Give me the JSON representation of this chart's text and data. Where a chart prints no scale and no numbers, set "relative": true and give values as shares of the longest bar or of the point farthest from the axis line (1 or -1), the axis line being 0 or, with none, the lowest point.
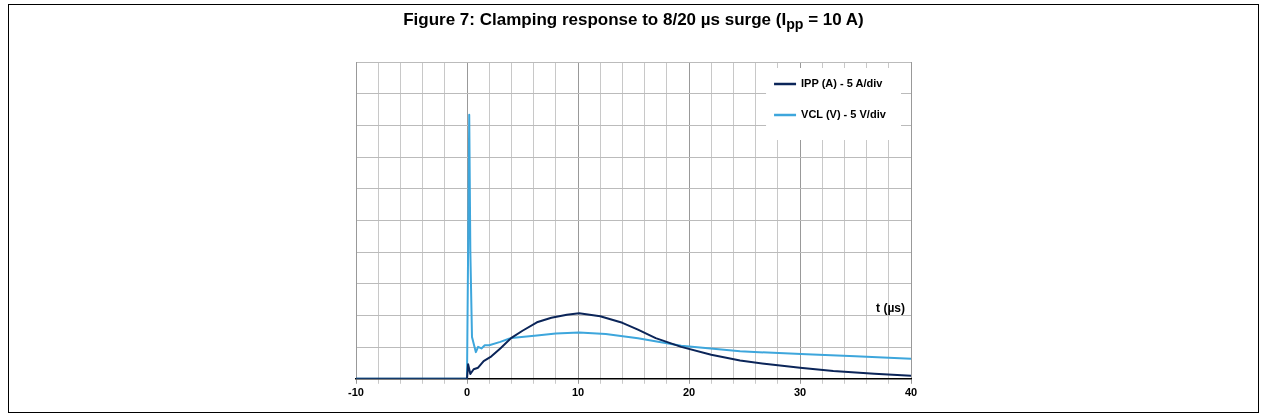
{
  "chart_data": {
    "type": "line",
    "title": "Figure 7: Clamping response to 8/20 µs surge (I$_{pp}$ = 10 A)",
    "xlabel": "t (µs)",
    "relative": true,
    "xlim": [
      -10,
      40
    ],
    "xticks": [
      -10,
      {
        "value": -8,
        "label": null
      },
      {
        "value": -6,
        "label": null
      },
      {
        "value": -4,
        "label": null
      },
      {
        "value": -2,
        "label": null
      },
      0,
      {
        "value": 2,
        "label": null
      },
      {
        "value": 4,
        "label": null
      },
      {
        "value": 6,
        "label": null
      },
      {
        "value": 8,
        "label": null
      },
      10,
      {
        "value": 12,
        "label": null
      },
      {
        "value": 14,
        "label": null
      },
      {
        "value": 16,
        "label": null
      },
      {
        "value": 18,
        "label": null
      },
      20,
      {
        "value": 22,
        "label": null
      },
      {
        "value": 24,
        "label": null
      },
      {
        "value": 26,
        "label": null
      },
      {
        "value": 28,
        "label": null
      },
      30,
      {
        "value": 32,
        "label": null
      },
      {
        "value": 34,
        "label": null
      },
      {
        "value": 36,
        "label": null
      },
      {
        "value": 38,
        "label": null
      },
      40
    ],
    "grid": true,
    "legend": "top right",
    "marker": "none",
    "line_style": "solid",
    "series": [
      {
        "name": "IPP (A) - 5 A/div",
        "color": "#0b2559",
        "x": [
          -10,
          0,
          0.1,
          0.3,
          0.6,
          1,
          1.5,
          2.2,
          3,
          4,
          5,
          6.3,
          7.6,
          9,
          10.1,
          12,
          14,
          15.4,
          17,
          19.3,
          22,
          24.6,
          27,
          30,
          33,
          36.7,
          40
        ],
        "values": [
          0,
          0,
          0.055,
          0.018,
          0.036,
          0.042,
          0.067,
          0.085,
          0.115,
          0.155,
          0.182,
          0.214,
          0.231,
          0.243,
          0.248,
          0.237,
          0.212,
          0.186,
          0.154,
          0.121,
          0.091,
          0.069,
          0.056,
          0.042,
          0.03,
          0.019,
          0.012
        ]
      },
      {
        "name": "VCL (V) - 5 V/div",
        "color": "#3da6dc",
        "x": [
          -10,
          0,
          0.1,
          0.2,
          0.3,
          0.45,
          0.8,
          1,
          1.3,
          1.6,
          2,
          3,
          4,
          6.3,
          8,
          10.1,
          12.5,
          15.4,
          19.3,
          24.6,
          30.6,
          35,
          40
        ],
        "values": [
          0,
          0,
          0.485,
          1,
          0.485,
          0.158,
          0.101,
          0.121,
          0.115,
          0.127,
          0.127,
          0.14,
          0.155,
          0.164,
          0.172,
          0.175,
          0.17,
          0.154,
          0.125,
          0.104,
          0.093,
          0.085,
          0.076
        ]
      }
    ]
  }
}
